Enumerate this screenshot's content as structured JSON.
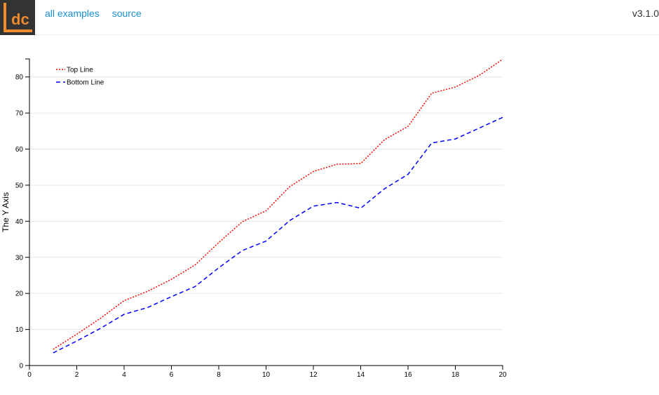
{
  "header": {
    "logo_text": "dc",
    "links": [
      "all examples",
      "source"
    ],
    "version": "v3.1.0"
  },
  "colors": {
    "logo_bg": "#333333",
    "logo_accent": "#ef8a2e",
    "link": "#1a8fd1",
    "top_line": "#ff0000",
    "bottom_line": "#0000ff",
    "grid": "#e6e6e6"
  },
  "chart_data": {
    "type": "line",
    "title": "",
    "xlabel": "",
    "ylabel": "The Y Axis",
    "xlim": [
      0,
      20
    ],
    "ylim": [
      0,
      85
    ],
    "x_ticks": [
      0,
      2,
      4,
      6,
      8,
      10,
      12,
      14,
      16,
      18,
      20
    ],
    "y_ticks": [
      0,
      10,
      20,
      30,
      40,
      50,
      60,
      70,
      80
    ],
    "grid": "horizontal",
    "legend": "top-left",
    "x": [
      1,
      2,
      3,
      4,
      5,
      6,
      7,
      8,
      9,
      10,
      11,
      12,
      13,
      14,
      15,
      16,
      17,
      18,
      19,
      20
    ],
    "series": [
      {
        "name": "Top Line",
        "style": "dotted",
        "color": "#ff0000",
        "values": [
          4.5,
          8.7,
          13.1,
          18.0,
          20.6,
          23.9,
          27.9,
          34.1,
          39.9,
          42.9,
          49.6,
          53.8,
          55.8,
          56.0,
          62.6,
          66.3,
          75.5,
          77.2,
          80.4,
          84.9
        ]
      },
      {
        "name": "Bottom Line",
        "style": "dashed",
        "color": "#0000ff",
        "values": [
          3.5,
          6.8,
          10.3,
          14.2,
          16.1,
          19.1,
          21.9,
          27.1,
          31.9,
          34.5,
          40.2,
          44.2,
          45.2,
          43.6,
          49.0,
          53.0,
          61.7,
          62.8,
          65.8,
          68.8
        ]
      }
    ]
  }
}
